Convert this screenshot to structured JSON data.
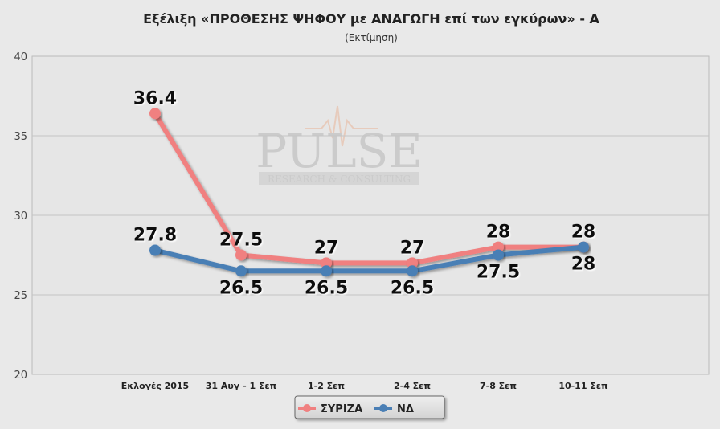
{
  "chart_data": {
    "type": "line",
    "title": "Εξέλιξη «ΠΡΟΘΕΣΗΣ ΨΗΦΟΥ με ΑΝΑΓΩΓΗ επί των εγκύρων» - Α",
    "subtitle": "(Εκτίμηση)",
    "categories": [
      "Εκλογές 2015",
      "31 Αυγ - 1 Σεπ",
      "1-2 Σεπ",
      "2-4 Σεπ",
      "7-8 Σεπ",
      "10-11 Σεπ"
    ],
    "series": [
      {
        "name": "ΣΥΡΙΖΑ",
        "color": "#f08080",
        "values": [
          36.4,
          27.5,
          27,
          27,
          28,
          28
        ],
        "labels": [
          "36.4",
          "27.5",
          "27",
          "27",
          "28",
          "28"
        ],
        "label_position": "above"
      },
      {
        "name": "ΝΔ",
        "color": "#4a7fb5",
        "values": [
          27.8,
          26.5,
          26.5,
          26.5,
          27.5,
          28
        ],
        "labels": [
          "27.8",
          "26.5",
          "26.5",
          "26.5",
          "27.5",
          "28"
        ],
        "label_position": "mixed"
      }
    ],
    "ylim": [
      20,
      40
    ],
    "yticks": [
      20,
      25,
      30,
      35,
      40
    ],
    "grid": true,
    "legend": "bottom-center",
    "watermark": {
      "main": "PULSE",
      "sub": "RESEARCH & CONSULTING"
    }
  }
}
